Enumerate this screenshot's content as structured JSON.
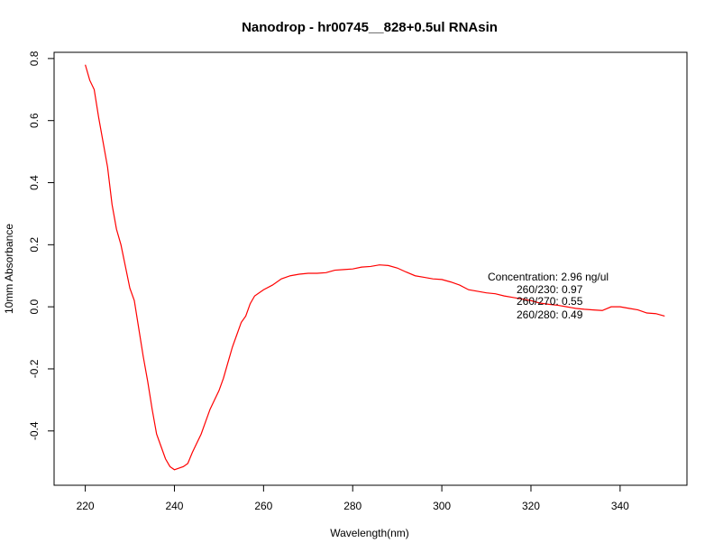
{
  "chart_data": {
    "type": "line",
    "title": "Nanodrop - hr00745__828+0.5ul RNAsin",
    "xlabel": "Wavelength(nm)",
    "ylabel": "10mm Absorbance",
    "xlim": [
      213,
      355
    ],
    "ylim": [
      -0.575,
      0.82
    ],
    "xticks": [
      220,
      240,
      260,
      280,
      300,
      320,
      340
    ],
    "yticks": [
      -0.4,
      -0.2,
      0.0,
      0.2,
      0.4,
      0.6,
      0.8
    ],
    "grid": false,
    "series": [
      {
        "color": "#ff0000",
        "x": [
          220,
          221,
          222,
          223,
          224,
          225,
          226,
          227,
          228,
          229,
          230,
          231,
          232,
          233,
          234,
          235,
          236,
          237,
          238,
          239,
          240,
          241,
          242,
          243,
          244,
          245,
          246,
          247,
          248,
          249,
          250,
          251,
          252,
          253,
          254,
          255,
          256,
          257,
          258,
          260,
          262,
          264,
          266,
          268,
          270,
          272,
          274,
          276,
          278,
          280,
          282,
          284,
          286,
          288,
          290,
          292,
          294,
          296,
          298,
          300,
          302,
          304,
          306,
          308,
          310,
          312,
          314,
          316,
          318,
          320,
          322,
          324,
          326,
          328,
          330,
          332,
          334,
          336,
          338,
          340,
          342,
          344,
          346,
          348,
          350
        ],
        "y": [
          0.78,
          0.73,
          0.7,
          0.61,
          0.53,
          0.45,
          0.33,
          0.25,
          0.2,
          0.13,
          0.06,
          0.02,
          -0.07,
          -0.16,
          -0.24,
          -0.33,
          -0.41,
          -0.45,
          -0.49,
          -0.515,
          -0.525,
          -0.52,
          -0.515,
          -0.505,
          -0.47,
          -0.44,
          -0.41,
          -0.37,
          -0.33,
          -0.3,
          -0.27,
          -0.23,
          -0.18,
          -0.13,
          -0.09,
          -0.05,
          -0.03,
          0.01,
          0.035,
          0.055,
          0.07,
          0.09,
          0.1,
          0.105,
          0.108,
          0.108,
          0.11,
          0.118,
          0.12,
          0.122,
          0.128,
          0.13,
          0.135,
          0.133,
          0.125,
          0.112,
          0.1,
          0.095,
          0.09,
          0.088,
          0.08,
          0.07,
          0.055,
          0.05,
          0.045,
          0.042,
          0.035,
          0.03,
          0.025,
          0.02,
          0.012,
          0.008,
          0.005,
          0.0,
          -0.005,
          -0.008,
          -0.01,
          -0.012,
          0.0,
          0.0,
          -0.005,
          -0.01,
          -0.02,
          -0.022,
          -0.03
        ]
      }
    ],
    "annotations": [
      "Concentration: 2.96 ng/ul",
      "260/230: 0.97",
      "260/270: 0.55",
      "260/280: 0.49"
    ]
  }
}
